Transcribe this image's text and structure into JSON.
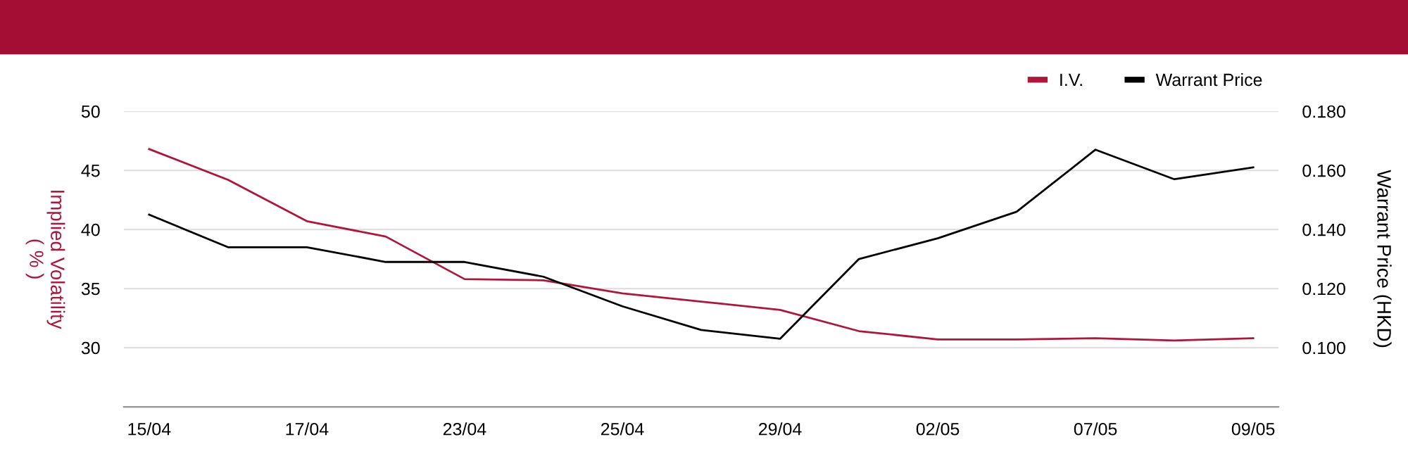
{
  "chart_data": {
    "type": "line",
    "categories": [
      "15/04",
      null,
      "17/04",
      null,
      "23/04",
      null,
      "25/04",
      null,
      "29/04",
      null,
      "02/05",
      null,
      "07/05",
      null,
      "09/05"
    ],
    "series": [
      {
        "name": "I.V.",
        "color": "#b0163c",
        "values": [
          46.8,
          44.2,
          40.7,
          39.4,
          35.8,
          35.7,
          34.6,
          33.9,
          33.2,
          31.4,
          30.7,
          30.7,
          30.8,
          30.6,
          30.8
        ]
      },
      {
        "name": "Warrant Price",
        "color": "#000000",
        "axis": "y2",
        "values": [
          0.145,
          0.134,
          0.134,
          0.129,
          0.129,
          0.124,
          0.114,
          0.106,
          0.103,
          0.13,
          0.137,
          0.146,
          0.167,
          0.157,
          0.161
        ]
      }
    ],
    "ylabel": "Implied Volatility\n( % )",
    "y2label": "Warrant Price (HKD)",
    "ylim": [
      25,
      50
    ],
    "yticks": [
      30,
      35,
      40,
      45,
      50
    ],
    "y2lim": [
      0.08,
      0.18
    ],
    "y2ticks": [
      {
        "value": 0.1,
        "label": "0.100"
      },
      {
        "value": 0.12,
        "label": "0.120"
      },
      {
        "value": 0.14,
        "label": "0.140"
      },
      {
        "value": 0.16,
        "label": "0.160"
      },
      {
        "value": 0.18,
        "label": "0.180"
      }
    ],
    "grid": "y",
    "legend": "top right",
    "marker": "none",
    "line_style": "solid"
  }
}
